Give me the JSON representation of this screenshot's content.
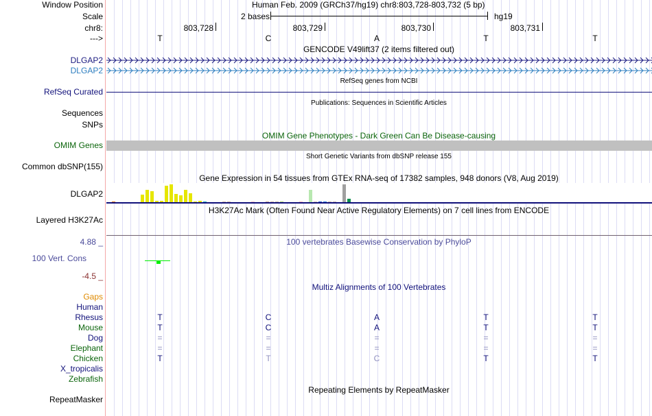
{
  "labels": {
    "window_position": "Window Position",
    "scale": "Scale",
    "chrom": "chr8:",
    "strand": "--->",
    "dlgap2_a": "DLGAP2",
    "dlgap2_b": "DLGAP2",
    "refseq": "RefSeq Curated",
    "sequences": "Sequences",
    "snps": "SNPs",
    "omim": "OMIM Genes",
    "dbsnp": "Common dbSNP(155)",
    "gtex": "DLGAP2",
    "h3k27ac": "Layered H3K27Ac",
    "cons_max": "4.88 _",
    "cons": "100 Vert. Cons",
    "cons_min": "-4.5 _",
    "species": [
      {
        "name": "Gaps",
        "color": "#e08a00"
      },
      {
        "name": "Human",
        "color": "#10107a"
      },
      {
        "name": "Rhesus",
        "color": "#10107a"
      },
      {
        "name": "Mouse",
        "color": "#0a640a"
      },
      {
        "name": "Dog",
        "color": "#10107a"
      },
      {
        "name": "Elephant",
        "color": "#0a640a"
      },
      {
        "name": "Chicken",
        "color": "#0a640a"
      },
      {
        "name": "X_tropicalis",
        "color": "#10107a"
      },
      {
        "name": "Zebrafish",
        "color": "#0a640a"
      }
    ],
    "repeatmasker": "RepeatMasker"
  },
  "header": {
    "title": "Human Feb. 2009 (GRCh37/hg19)   chr8:803,728-803,732 (5 bp)",
    "scale_text": "2 bases",
    "assembly": "hg19",
    "positions": [
      "803,728",
      "803,729",
      "803,730",
      "803,731"
    ]
  },
  "bases": [
    "T",
    "C",
    "A",
    "T",
    "T"
  ],
  "track_titles": {
    "gencode": "GENCODE V49lift37 (2 items filtered out)",
    "refseq": "RefSeq genes from NCBI",
    "publications": "Publications: Sequences in Scientific Articles",
    "omim": "OMIM Gene Phenotypes - Dark Green Can Be Disease-causing",
    "dbsnp": "Short Genetic Variants from dbSNP release 155",
    "gtex": "Gene Expression in 54 tissues from GTEx RNA-seq of 17382 samples, 948 donors (V8, Aug 2019)",
    "h3k27ac": "H3K27Ac Mark (Often Found Near Active Regulatory Elements) on 7 cell lines from ENCODE",
    "cons": "100 vertebrates Basewise Conservation by PhyloP",
    "multiz": "Multiz Alignments of 100 Vertebrates",
    "repeatmasker": "Repeating Elements by RepeatMasker"
  },
  "colors": {
    "gencode_a": "#1a1a80",
    "gencode_b": "#2e7fc0",
    "omim": "#c0c0c0",
    "navy": "#10107a",
    "cons": "#00ee00"
  },
  "gtex_values": [
    1,
    0,
    0,
    0,
    0,
    0,
    11,
    18,
    16,
    2,
    2,
    24,
    26,
    12,
    10,
    18,
    13,
    1,
    2,
    1,
    0,
    0,
    0,
    1,
    1,
    0,
    0,
    0,
    0,
    1,
    0,
    0,
    1,
    1,
    1,
    1,
    0,
    0,
    0,
    1,
    0,
    18,
    1,
    1,
    1,
    1,
    1,
    0,
    26,
    5,
    0,
    0,
    0,
    0
  ],
  "gtex_colors": [
    "#e08020",
    "#ccc",
    "#ccc",
    "#ccc",
    "#ccc",
    "#ccc",
    "#e6e600",
    "#e6e600",
    "#e6e600",
    "#e6e600",
    "#e6e600",
    "#e6e600",
    "#e6e600",
    "#e6e600",
    "#e6e600",
    "#e6e600",
    "#e6e600",
    "#e6e600",
    "#e6e600",
    "#20b0c0",
    "#ccc",
    "#ccc",
    "#ccc",
    "#d0b8a8",
    "#d0b8a8",
    "#ccc",
    "#ccc",
    "#ccc",
    "#ccc",
    "#f0c0c8",
    "#ccc",
    "#ccc",
    "#c8a898",
    "#c8b0a8",
    "#c8b8a8",
    "#a8d070",
    "#ccc",
    "#ccc",
    "#ccc",
    "#f4b8c0",
    "#ccc",
    "#b8e8b0",
    "#d0c0b8",
    "#3060d0",
    "#3080e0",
    "#c8b8b0",
    "#c8b8b0",
    "#ccc",
    "#a0a0a0",
    "#109050",
    "#ccc",
    "#ccc",
    "#ccc",
    "#ccc"
  ],
  "alignment": {
    "Human": [
      [
        "T",
        1
      ],
      [
        "C",
        1
      ],
      [
        "A",
        1
      ],
      [
        "T",
        1
      ],
      [
        "T",
        1
      ]
    ],
    "Rhesus": [
      [
        "T",
        1
      ],
      [
        "C",
        1
      ],
      [
        "A",
        1
      ],
      [
        "T",
        1
      ],
      [
        "T",
        1
      ]
    ],
    "Mouse": [
      [
        "=",
        0
      ],
      [
        "=",
        0
      ],
      [
        "=",
        0
      ],
      [
        "=",
        0
      ],
      [
        "=",
        0
      ]
    ],
    "Dog": [
      [
        "=",
        0
      ],
      [
        "=",
        0
      ],
      [
        "=",
        0
      ],
      [
        "=",
        0
      ],
      [
        "=",
        0
      ]
    ],
    "Elephant": [
      [
        "T",
        1
      ],
      [
        "T",
        0
      ],
      [
        "C",
        0
      ],
      [
        "T",
        1
      ],
      [
        "T",
        1
      ]
    ]
  }
}
